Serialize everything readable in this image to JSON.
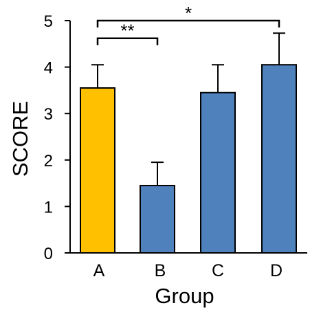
{
  "chart_data": {
    "type": "bar",
    "categories": [
      "A",
      "B",
      "C",
      "D"
    ],
    "values": [
      3.55,
      1.45,
      3.45,
      4.05
    ],
    "errors": [
      0.5,
      0.5,
      0.6,
      0.68
    ],
    "colors": [
      "#FFC000",
      "#4F81BD",
      "#4F81BD",
      "#4F81BD"
    ],
    "xlabel": "Group",
    "ylabel": "SCORE",
    "ylim": [
      0,
      5
    ],
    "yticks": [
      "0",
      "1",
      "2",
      "3",
      "4",
      "5"
    ],
    "grid": false,
    "significance": [
      {
        "from": "A",
        "to": "B",
        "label": "**",
        "y": 4.62
      },
      {
        "from": "A",
        "to": "D",
        "label": "*",
        "y": 5.0
      }
    ]
  }
}
